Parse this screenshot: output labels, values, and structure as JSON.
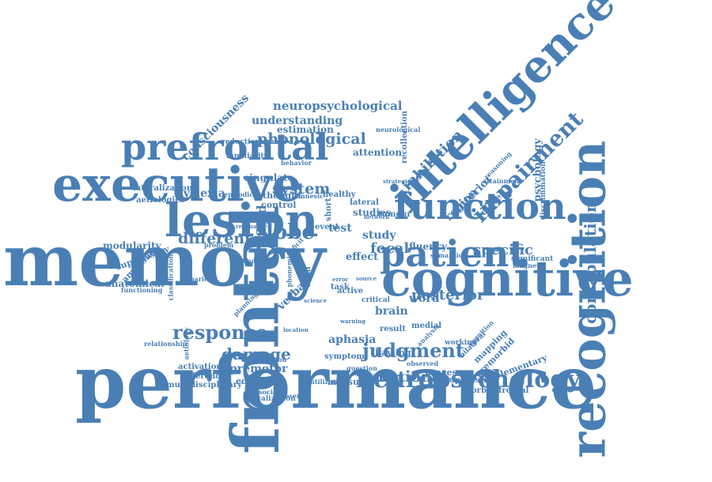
{
  "colors": {
    "word": "#4a7fb5",
    "background": "#ffffff"
  },
  "words": [
    {
      "text": "performance",
      "rot": 0
    },
    {
      "text": "memory",
      "rot": 0
    },
    {
      "text": "frontal",
      "rot": -90
    },
    {
      "text": "cognitive",
      "rot": 0
    },
    {
      "text": "executive",
      "rot": 0
    },
    {
      "text": "recognition",
      "rot": -90
    },
    {
      "text": "intelligence",
      "rot": -45
    },
    {
      "text": "function",
      "rot": 0
    },
    {
      "text": "patient",
      "rot": 0
    },
    {
      "text": "lesion",
      "rot": 0
    },
    {
      "text": "prefrontal",
      "rot": 0
    },
    {
      "text": "neuropsychology",
      "rot": 0
    },
    {
      "text": "response",
      "rot": 0
    },
    {
      "text": "judgment",
      "rot": 0
    },
    {
      "text": "damage",
      "rot": 0
    },
    {
      "text": "impairment",
      "rot": -45
    },
    {
      "text": "confabulation",
      "rot": -90
    },
    {
      "text": "lobe",
      "rot": 0
    },
    {
      "text": "different",
      "rot": 0
    },
    {
      "text": "posterior",
      "rot": 0
    },
    {
      "text": "functional",
      "rot": 0
    },
    {
      "text": "phonological",
      "rot": 0
    },
    {
      "text": "system",
      "rot": 0
    },
    {
      "text": "specific",
      "rot": 0
    },
    {
      "text": "focal",
      "rot": 0
    },
    {
      "text": "aphasia",
      "rot": 0
    },
    {
      "text": "fluency",
      "rot": 0
    },
    {
      "text": "inhibition",
      "rot": -45
    },
    {
      "text": "neuropsychological",
      "rot": 0
    },
    {
      "text": "understanding",
      "rot": 0
    },
    {
      "text": "consciousness",
      "rot": -45
    },
    {
      "text": "dyslexia",
      "rot": 0
    },
    {
      "text": "premotor",
      "rot": 0
    },
    {
      "text": "education",
      "rot": 0
    },
    {
      "text": "measure",
      "rot": 0
    },
    {
      "text": "processes",
      "rot": 0
    },
    {
      "text": "brain",
      "rot": 0
    },
    {
      "text": "study",
      "rot": 0
    },
    {
      "text": "test",
      "rot": 0
    },
    {
      "text": "effect",
      "rot": 0
    },
    {
      "text": "word",
      "rot": 0
    },
    {
      "text": "region",
      "rot": -45
    },
    {
      "text": "anterior",
      "rot": -45
    },
    {
      "text": "psychology",
      "rot": -90
    },
    {
      "text": "verbal",
      "rot": -45
    },
    {
      "text": "fluid",
      "rot": -90
    },
    {
      "text": "estimation",
      "rot": 0
    },
    {
      "text": "cingulate",
      "rot": 0
    },
    {
      "text": "attention",
      "rot": 0
    },
    {
      "text": "modularity",
      "rot": 0
    },
    {
      "text": "supervisory",
      "rot": -20
    },
    {
      "text": "amnesia",
      "rot": -45
    },
    {
      "text": "anatomical",
      "rot": 0
    },
    {
      "text": "activation",
      "rot": 0
    },
    {
      "text": "difference",
      "rot": 0
    },
    {
      "text": "multidisciplinary",
      "rot": 0
    },
    {
      "text": "localization",
      "rot": 0
    },
    {
      "text": "lateralization",
      "rot": 0
    },
    {
      "text": "aetiologies",
      "rot": 0
    },
    {
      "text": "reductionism",
      "rot": 0
    },
    {
      "text": "familiarity",
      "rot": 0
    },
    {
      "text": "thought",
      "rot": 0
    },
    {
      "text": "control",
      "rot": 0
    },
    {
      "text": "healthy",
      "rot": 0
    },
    {
      "text": "lateral",
      "rot": 0
    },
    {
      "text": "studies",
      "rot": 0
    },
    {
      "text": "tumour",
      "rot": 0
    },
    {
      "text": "event",
      "rot": 0
    },
    {
      "text": "result",
      "rot": 0
    },
    {
      "text": "medial",
      "rot": 0
    },
    {
      "text": "significant",
      "rot": 0
    },
    {
      "text": "hayling",
      "rot": 0
    },
    {
      "text": "symptom",
      "rot": 0
    },
    {
      "text": "suppression",
      "rot": 0
    },
    {
      "text": "orbitofrontal",
      "rot": 0
    },
    {
      "text": "supplementary",
      "rot": -20
    },
    {
      "text": "premorbid",
      "rot": -45
    },
    {
      "text": "mapping",
      "rot": -45
    },
    {
      "text": "working",
      "rot": 0
    },
    {
      "text": "related",
      "rot": -45
    },
    {
      "text": "short",
      "rot": -90
    },
    {
      "text": "term",
      "rot": -90
    },
    {
      "text": "behavior",
      "rot": 0
    },
    {
      "text": "episodic",
      "rot": 0
    },
    {
      "text": "amnesic",
      "rot": 0
    },
    {
      "text": "neurological",
      "rot": 0
    },
    {
      "text": "recollection",
      "rot": -90
    },
    {
      "text": "classification",
      "rot": -90
    },
    {
      "text": "phonemic",
      "rot": -90
    },
    {
      "text": "aetiology",
      "rot": -90
    },
    {
      "text": "finding",
      "rot": 0
    },
    {
      "text": "problem",
      "rot": 0
    },
    {
      "text": "parietal",
      "rot": 0
    },
    {
      "text": "functioning",
      "rot": 0
    },
    {
      "text": "relationship",
      "rot": 0
    },
    {
      "text": "detection",
      "rot": 0
    },
    {
      "text": "reserve",
      "rot": 0
    },
    {
      "text": "utilization",
      "rot": 0
    },
    {
      "text": "dissociable",
      "rot": 0
    },
    {
      "text": "critical",
      "rot": 0
    },
    {
      "text": "active",
      "rot": 0
    },
    {
      "text": "task",
      "rot": 0
    },
    {
      "text": "question",
      "rot": 0
    },
    {
      "text": "observed",
      "rot": 0
    },
    {
      "text": "discrimination",
      "rot": -90
    },
    {
      "text": "magnetic",
      "rot": 0
    },
    {
      "text": "attainment",
      "rot": 0
    },
    {
      "text": "reasoning",
      "rot": -45
    },
    {
      "text": "analysis",
      "rot": -45
    },
    {
      "text": "semantic",
      "rot": 0
    },
    {
      "text": "planning",
      "rot": -45
    },
    {
      "text": "network",
      "rot": 0
    },
    {
      "text": "resonance",
      "rot": 0
    },
    {
      "text": "deficit",
      "rot": -45
    },
    {
      "text": "strategies",
      "rot": 0
    },
    {
      "text": "error",
      "rot": 0
    },
    {
      "text": "source",
      "rot": 0
    },
    {
      "text": "science",
      "rot": 0
    },
    {
      "text": "warning",
      "rot": 0
    },
    {
      "text": "location",
      "rot": 0
    },
    {
      "text": "bilateral",
      "rot": -45
    },
    {
      "text": "cognition",
      "rot": -45
    }
  ]
}
